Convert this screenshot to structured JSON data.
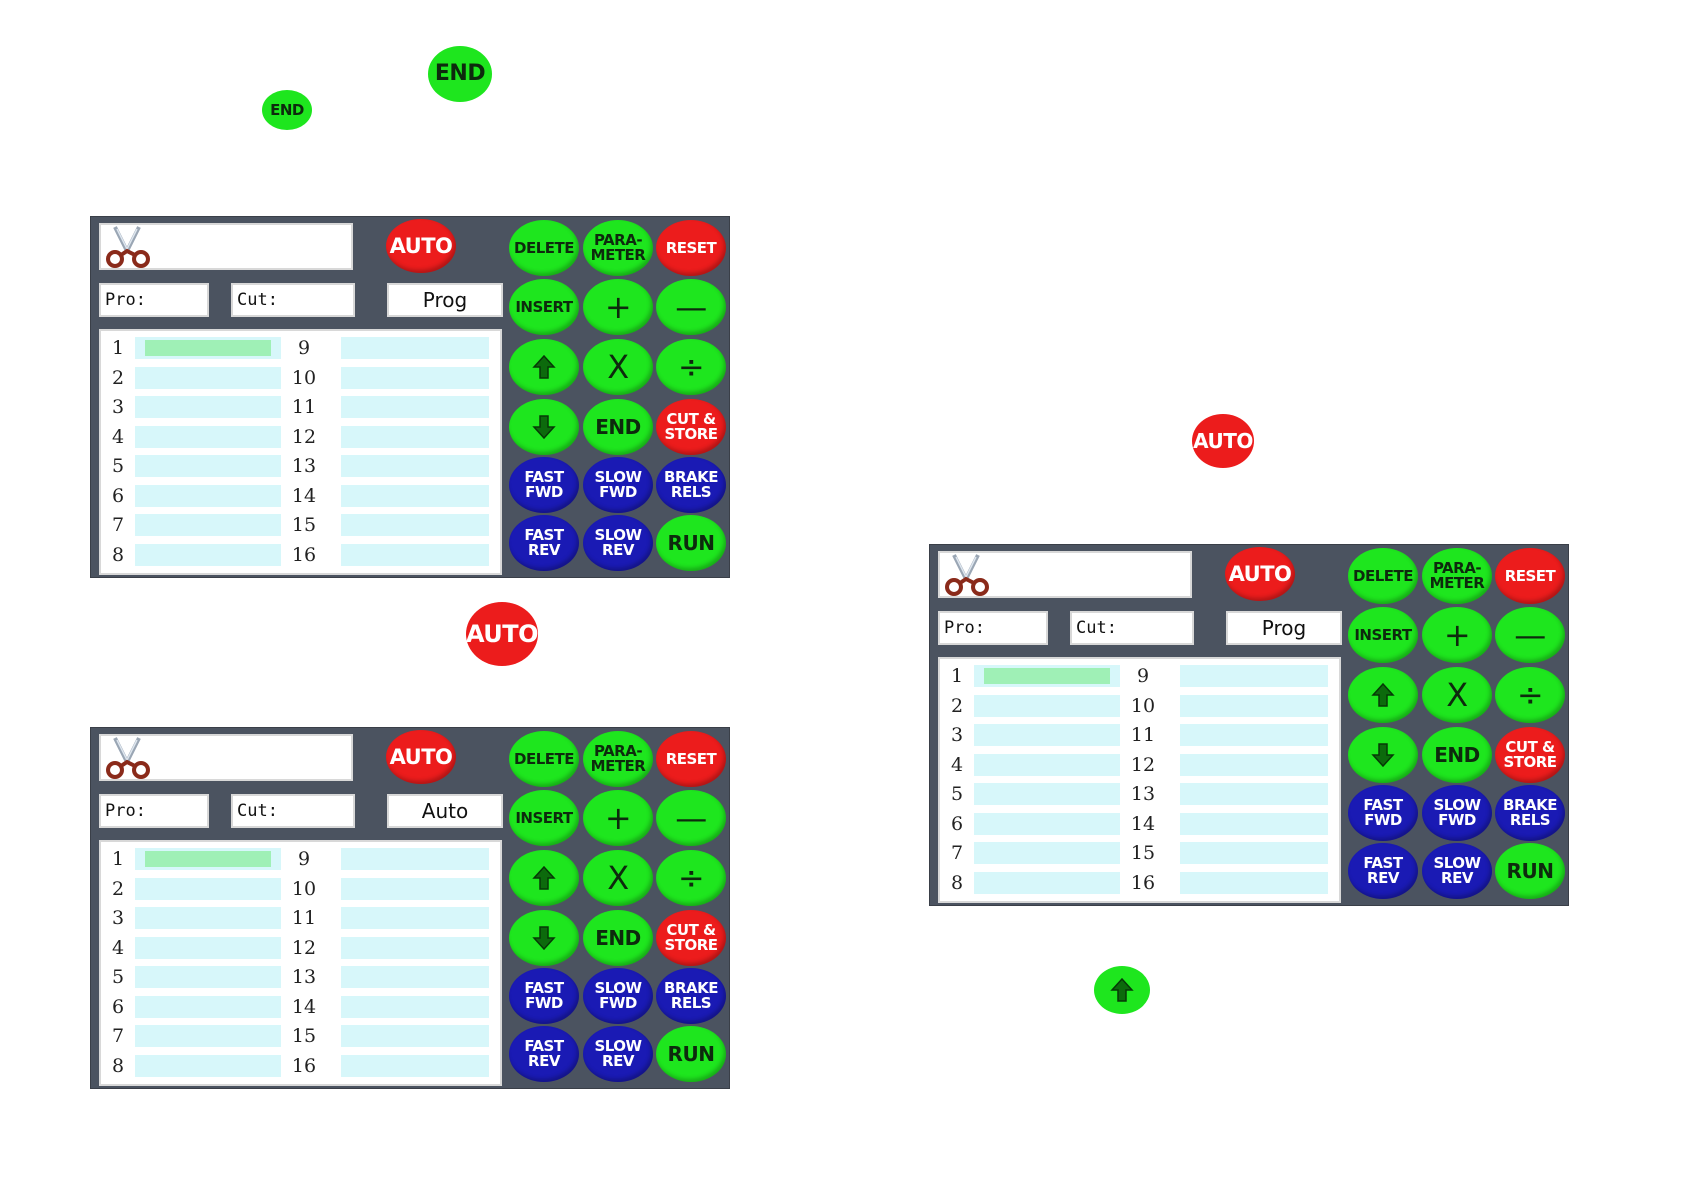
{
  "callouts": {
    "end_label": "END",
    "auto_label": "AUTO"
  },
  "colors": {
    "green": "#1ee61e",
    "red": "#ec1c1c",
    "blue": "#1a1ab4",
    "panel": "#4b5360",
    "cell": "#d7f7fa",
    "selected_cell": "#9ff0b6"
  },
  "icons": {
    "logo": "scissors-icon",
    "up": "arrow-up-icon",
    "down": "arrow-down-icon"
  },
  "panels": [
    {
      "mode": "Prog"
    },
    {
      "mode": "Auto"
    },
    {
      "mode": "Prog"
    }
  ],
  "labels": {
    "pro": "Pro:",
    "cut": "Cut:"
  },
  "rows_left": [
    "1",
    "2",
    "3",
    "4",
    "5",
    "6",
    "7",
    "8"
  ],
  "rows_right": [
    "9",
    "10",
    "11",
    "12",
    "13",
    "14",
    "15",
    "16"
  ],
  "buttons": {
    "auto": "AUTO",
    "delete": "DELETE",
    "parameter_1": "PARA-",
    "parameter_2": "METER",
    "reset": "RESET",
    "insert": "INSERT",
    "plus": "+",
    "minus": "—",
    "multiply": "X",
    "divide": "÷",
    "end": "END",
    "cut_store_1": "CUT &",
    "cut_store_2": "STORE",
    "fast_fwd_1": "FAST",
    "fast_fwd_2": "FWD",
    "slow_fwd_1": "SLOW",
    "slow_fwd_2": "FWD",
    "brake_rels_1": "BRAKE",
    "brake_rels_2": "RELS",
    "fast_rev_1": "FAST",
    "fast_rev_2": "REV",
    "slow_rev_1": "SLOW",
    "slow_rev_2": "REV",
    "run": "RUN"
  }
}
